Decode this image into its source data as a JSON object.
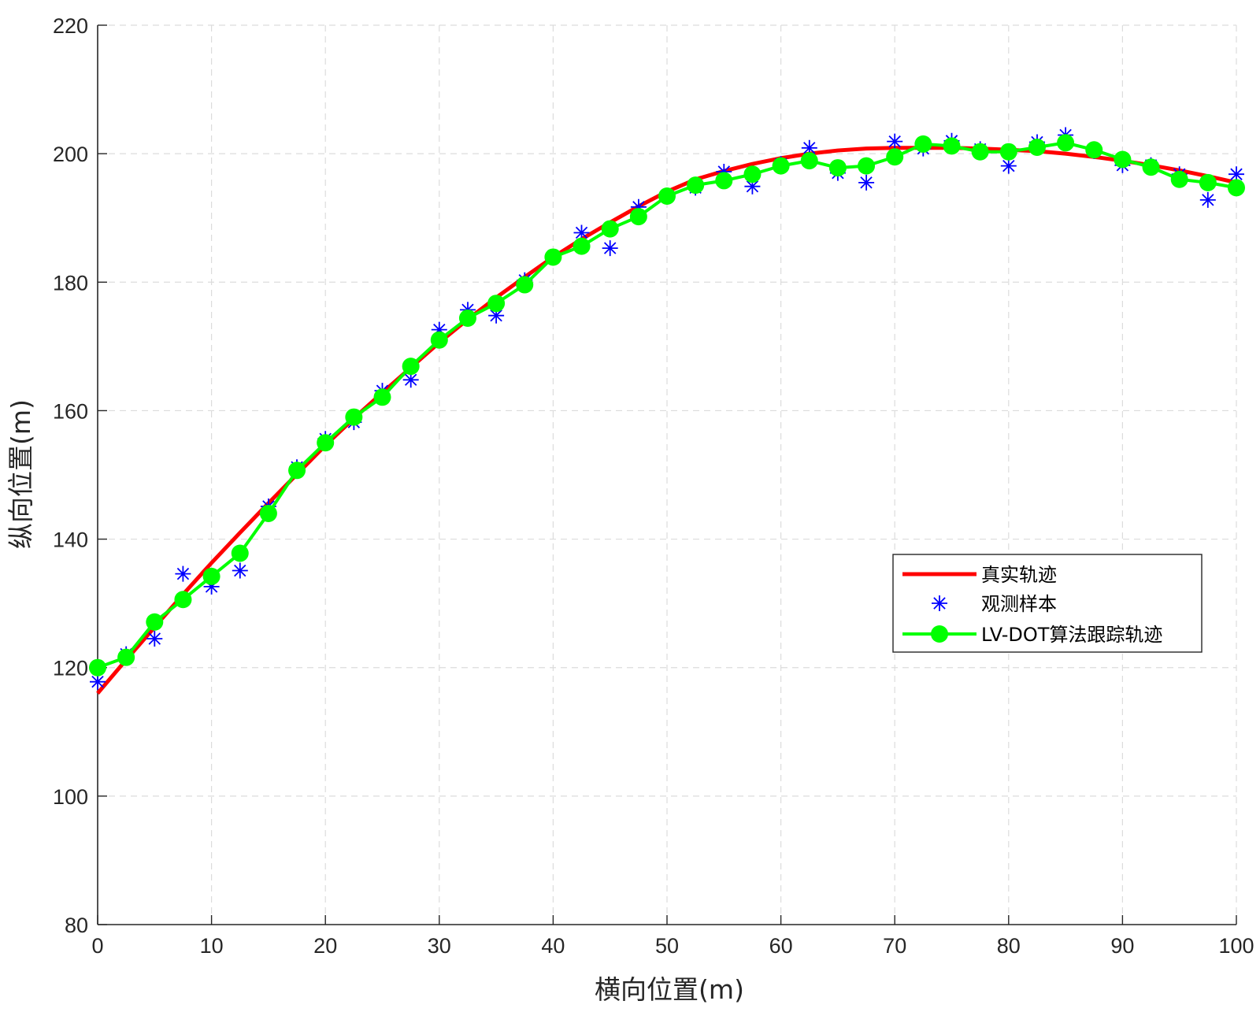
{
  "chart_data": {
    "type": "line",
    "title": "",
    "xlabel": "横向位置(m)",
    "ylabel": "纵向位置(m)",
    "xlim": [
      0,
      100
    ],
    "ylim": [
      80,
      220
    ],
    "xticks": [
      0,
      10,
      20,
      30,
      40,
      50,
      60,
      70,
      80,
      90,
      100
    ],
    "yticks": [
      80,
      100,
      120,
      140,
      160,
      180,
      200,
      220
    ],
    "grid": true,
    "legend_position": "right",
    "series": [
      {
        "name": "真实轨迹",
        "style": "line",
        "color": "#ff0000",
        "x": [
          0,
          2.5,
          5,
          7.5,
          10,
          12.5,
          15,
          17.5,
          20,
          22.5,
          25,
          27.5,
          30,
          32.5,
          35,
          37.5,
          40,
          42.5,
          45,
          47.5,
          50,
          52.5,
          55,
          57.5,
          60,
          62.5,
          65,
          67.5,
          70,
          72.5,
          75,
          77.5,
          80,
          82.5,
          85,
          87.5,
          90,
          92.5,
          95,
          97.5,
          100
        ],
        "y": [
          116.0,
          121.2,
          126.3,
          131.4,
          136.3,
          141.0,
          145.6,
          150.1,
          154.6,
          158.8,
          162.8,
          166.7,
          170.6,
          174.2,
          177.6,
          180.8,
          183.9,
          186.7,
          189.3,
          191.8,
          194.1,
          196.0,
          197.3,
          198.4,
          199.3,
          200.0,
          200.5,
          200.8,
          200.9,
          200.9,
          200.9,
          200.8,
          200.6,
          200.4,
          200.0,
          199.5,
          198.9,
          198.2,
          197.4,
          196.5,
          195.5
        ]
      },
      {
        "name": "观测样本",
        "style": "marker-star",
        "color": "#0000ff",
        "x": [
          0,
          2.5,
          5,
          7.5,
          10,
          12.5,
          15,
          17.5,
          20,
          22.5,
          25,
          27.5,
          30,
          32.5,
          35,
          37.5,
          40,
          42.5,
          45,
          47.5,
          50,
          52.5,
          55,
          57.5,
          60,
          62.5,
          65,
          67.5,
          70,
          72.5,
          75,
          77.5,
          80,
          82.5,
          85,
          87.5,
          90,
          92.5,
          95,
          97.5,
          100
        ],
        "y": [
          117.8,
          122.1,
          124.5,
          134.6,
          132.6,
          135.1,
          145.1,
          151.2,
          155.6,
          158.2,
          163.1,
          164.8,
          172.6,
          175.7,
          174.8,
          180.3,
          183.8,
          187.7,
          185.3,
          191.7,
          193.3,
          194.7,
          197.2,
          194.9,
          198.4,
          200.9,
          197.0,
          195.5,
          201.9,
          200.8,
          202.0,
          200.7,
          198.1,
          201.8,
          202.9,
          200.4,
          198.2,
          198.2,
          196.8,
          192.8,
          196.8
        ]
      },
      {
        "name": "LV-DOT算法跟踪轨迹",
        "style": "line-marker-circle",
        "color": "#00ff00",
        "x": [
          0,
          2.5,
          5,
          7.5,
          10,
          12.5,
          15,
          17.5,
          20,
          22.5,
          25,
          27.5,
          30,
          32.5,
          35,
          37.5,
          40,
          42.5,
          45,
          47.5,
          50,
          52.5,
          55,
          57.5,
          60,
          62.5,
          65,
          67.5,
          70,
          72.5,
          75,
          77.5,
          80,
          82.5,
          85,
          87.5,
          90,
          92.5,
          95,
          97.5,
          100
        ],
        "y": [
          120.0,
          121.6,
          127.1,
          130.6,
          134.2,
          137.8,
          144.0,
          150.7,
          155.0,
          159.0,
          162.1,
          166.9,
          171.0,
          174.4,
          176.7,
          179.6,
          183.9,
          185.6,
          188.3,
          190.2,
          193.4,
          195.1,
          195.8,
          196.8,
          198.1,
          198.9,
          197.8,
          198.1,
          199.5,
          201.5,
          201.2,
          200.3,
          200.3,
          201.0,
          201.7,
          200.6,
          199.1,
          197.9,
          196.0,
          195.5,
          194.7
        ]
      }
    ]
  }
}
